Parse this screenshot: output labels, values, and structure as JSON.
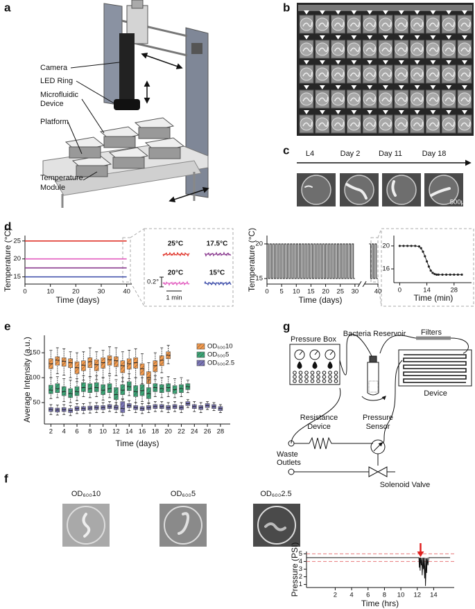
{
  "panel_labels": [
    "a",
    "b",
    "c",
    "d",
    "e",
    "f",
    "g"
  ],
  "panel_a": {
    "labels": [
      "Camera",
      "LED Ring",
      "Microfluidic",
      "Device",
      "Platform",
      "Temperature",
      "Module"
    ]
  },
  "panel_c": {
    "timeline": [
      "L4",
      "Day 2",
      "Day 11",
      "Day 18"
    ],
    "scale_bar": "500µm"
  },
  "panel_d_inset": {
    "temperatures": [
      "25°C",
      "17.5°C",
      "20°C",
      "15°C"
    ],
    "scale_y": "0.2°",
    "scale_x": "1 min"
  },
  "panel_f": {
    "labels": [
      "OD₆₀₀10",
      "OD₆₀₀5",
      "OD₆₀₀2.5"
    ]
  },
  "panel_g": {
    "labels": [
      "Pressure Box",
      "Bacteria Reservoir",
      "Filters",
      "Device",
      "Resistance",
      "Device",
      "Pressure",
      "Sensor",
      "Waste",
      "Outlets",
      "Solenoid Valve"
    ]
  },
  "chart_data": [
    {
      "type": "line",
      "x_label": "Time (days)",
      "y_label": "Temperature (°C)",
      "xlim": [
        0,
        42
      ],
      "ylim": [
        13,
        26.5
      ],
      "xticks": [
        0,
        10,
        20,
        30,
        40
      ],
      "yticks": [
        15,
        20,
        25
      ],
      "x": [
        0,
        40
      ],
      "series": [
        {
          "color": "#e0352b",
          "values": [
            25,
            25
          ]
        },
        {
          "color": "#e25bbf",
          "values": [
            20,
            20
          ]
        },
        {
          "color": "#8a3a8f",
          "values": [
            17.5,
            17.5
          ]
        },
        {
          "color": "#3a4aa8",
          "values": [
            15,
            15
          ]
        }
      ]
    },
    {
      "type": "line",
      "x_label": "Time (days)",
      "y_label": "Temperature (°C)",
      "xlim": [
        0,
        40
      ],
      "axis_break": [
        31,
        36
      ],
      "ylim": [
        14.2,
        21.2
      ],
      "xticks": [
        0,
        5,
        10,
        15,
        20,
        25,
        30,
        40
      ],
      "yticks": [
        15,
        20
      ],
      "x": [
        0,
        0.5,
        0.5,
        1,
        1,
        1.5,
        1.5,
        2,
        2,
        2.5,
        2.5,
        3,
        3,
        3.5,
        3.5,
        4,
        4,
        4.5,
        4.5,
        5,
        5,
        5.5,
        5.5,
        6,
        6,
        6.5,
        6.5,
        7,
        7,
        7.5,
        7.5,
        8,
        8,
        8.5,
        8.5,
        9,
        9,
        9.5,
        9.5,
        10,
        10,
        10.5,
        10.5,
        11,
        11,
        11.5,
        11.5,
        12,
        12,
        12.5,
        12.5,
        13,
        13,
        13.5,
        13.5,
        14,
        14,
        14.5,
        14.5,
        15,
        15,
        15.5,
        15.5,
        16,
        16,
        16.5,
        16.5,
        17,
        17,
        17.5,
        17.5,
        18,
        18,
        18.5,
        18.5,
        19,
        19,
        19.5,
        19.5,
        20,
        20,
        20.5,
        20.5,
        21,
        21,
        21.5,
        21.5,
        22,
        22,
        22.5,
        22.5,
        23,
        23,
        23.5,
        23.5,
        24,
        24,
        24.5,
        24.5,
        25,
        25,
        25.5,
        25.5,
        26,
        26,
        26.5,
        26.5,
        27,
        27,
        27.5,
        27.5,
        28,
        28,
        28.5,
        28.5,
        29,
        29,
        29.5,
        29.5,
        30,
        null,
        37,
        37.5,
        37.5,
        38,
        38,
        38.5,
        38.5,
        39,
        39,
        39.5,
        39.5,
        40
      ],
      "series": [
        {
          "color": "#222222",
          "values": [
            20,
            20,
            15,
            15,
            20,
            20,
            15,
            15,
            20,
            20,
            15,
            15,
            20,
            20,
            15,
            15,
            20,
            20,
            15,
            15,
            20,
            20,
            15,
            15,
            20,
            20,
            15,
            15,
            20,
            20,
            15,
            15,
            20,
            20,
            15,
            15,
            20,
            20,
            15,
            15,
            20,
            20,
            15,
            15,
            20,
            20,
            15,
            15,
            20,
            20,
            15,
            15,
            20,
            20,
            15,
            15,
            20,
            20,
            15,
            15,
            20,
            20,
            15,
            15,
            20,
            20,
            15,
            15,
            20,
            20,
            15,
            15,
            20,
            20,
            15,
            15,
            20,
            20,
            15,
            15,
            20,
            20,
            15,
            15,
            20,
            20,
            15,
            15,
            20,
            20,
            15,
            15,
            20,
            20,
            15,
            15,
            20,
            20,
            15,
            15,
            20,
            20,
            15,
            15,
            20,
            20,
            15,
            15,
            20,
            20,
            15,
            15,
            20,
            20,
            15,
            15,
            20,
            20,
            15,
            15,
            null,
            20,
            20,
            15,
            15,
            20,
            20,
            15,
            15,
            20,
            20,
            15,
            15
          ]
        }
      ]
    },
    {
      "type": "line",
      "x_label": "Time (min)",
      "xlim": [
        -3,
        37
      ],
      "ylim": [
        13.6,
        21.8
      ],
      "xticks": [
        0,
        14,
        28
      ],
      "yticks": [
        16,
        20
      ],
      "markers": true,
      "x": [
        0,
        2,
        4,
        6,
        8,
        10,
        11,
        12,
        13,
        14,
        15,
        16,
        17,
        18,
        19,
        20,
        22,
        24,
        26,
        28,
        30,
        32
      ],
      "series": [
        {
          "color": "#222222",
          "values": [
            20,
            20,
            20,
            20,
            20,
            19.9,
            19.6,
            19,
            18.2,
            17.3,
            16.4,
            15.7,
            15.3,
            15.1,
            15,
            15,
            15,
            15,
            15,
            15,
            15,
            15
          ]
        }
      ]
    },
    {
      "type": "box",
      "x_label": "Time (days)",
      "y_label": "Average Intensity (a.u.)",
      "xlim": [
        1,
        29.5
      ],
      "ylim": [
        7,
        185
      ],
      "xticks": [
        2,
        4,
        6,
        8,
        10,
        12,
        14,
        16,
        18,
        20,
        22,
        24,
        26,
        28
      ],
      "yticks": [
        50,
        100,
        150
      ],
      "series": [
        {
          "name": "OD₆₀₀10",
          "color": "#f39a4c",
          "x": [
            2,
            3,
            4,
            5,
            6,
            7,
            8,
            9,
            10,
            11,
            12,
            13,
            14,
            15,
            16,
            17,
            18,
            19,
            20
          ],
          "low": [
            100,
            108,
            105,
            100,
            92,
            95,
            102,
            96,
            100,
            108,
            104,
            92,
            98,
            100,
            88,
            70,
            96,
            110,
            128
          ],
          "q1": [
            118,
            125,
            123,
            120,
            108,
            114,
            120,
            114,
            119,
            125,
            122,
            110,
            117,
            119,
            105,
            88,
            112,
            124,
            138
          ],
          "median": [
            128,
            135,
            133,
            130,
            120,
            125,
            132,
            126,
            130,
            136,
            134,
            124,
            128,
            130,
            118,
            100,
            124,
            135,
            145
          ],
          "q3": [
            138,
            142,
            140,
            138,
            132,
            134,
            140,
            136,
            140,
            144,
            142,
            134,
            138,
            140,
            128,
            112,
            134,
            144,
            152
          ],
          "high": [
            155,
            160,
            158,
            152,
            150,
            152,
            160,
            152,
            155,
            162,
            160,
            152,
            155,
            158,
            148,
            130,
            150,
            160,
            165
          ]
        },
        {
          "name": "OD₆₀₀5",
          "color": "#3aa676",
          "x": [
            2,
            3,
            4,
            5,
            6,
            7,
            8,
            9,
            10,
            11,
            12,
            13,
            14,
            15,
            16,
            17,
            18,
            19,
            20,
            21,
            22,
            23
          ],
          "low": [
            58,
            60,
            52,
            50,
            54,
            62,
            60,
            62,
            55,
            60,
            45,
            56,
            64,
            50,
            52,
            48,
            62,
            60,
            62,
            60,
            62,
            70
          ],
          "q1": [
            68,
            70,
            64,
            60,
            64,
            72,
            70,
            72,
            66,
            70,
            56,
            66,
            74,
            62,
            64,
            58,
            72,
            70,
            72,
            68,
            70,
            76
          ],
          "median": [
            75,
            78,
            72,
            68,
            72,
            80,
            78,
            80,
            75,
            78,
            66,
            75,
            82,
            72,
            74,
            68,
            80,
            78,
            80,
            76,
            78,
            82
          ],
          "q3": [
            85,
            88,
            82,
            78,
            82,
            90,
            88,
            90,
            86,
            88,
            80,
            86,
            92,
            84,
            86,
            80,
            88,
            86,
            88,
            84,
            86,
            88
          ],
          "high": [
            100,
            102,
            98,
            95,
            98,
            104,
            102,
            104,
            100,
            104,
            96,
            100,
            108,
            100,
            100,
            96,
            104,
            100,
            102,
            98,
            100,
            95
          ]
        },
        {
          "name": "OD₆₀₀2.5",
          "color": "#7a75b8",
          "x": [
            2,
            3,
            4,
            5,
            6,
            7,
            8,
            9,
            10,
            11,
            12,
            13,
            14,
            15,
            16,
            17,
            18,
            19,
            20,
            21,
            22,
            23,
            24,
            25,
            26,
            27,
            28
          ],
          "low": [
            26,
            25,
            26,
            24,
            28,
            28,
            29,
            30,
            30,
            32,
            30,
            24,
            34,
            30,
            28,
            30,
            32,
            32,
            30,
            32,
            30,
            40,
            32,
            30,
            36,
            34,
            30
          ],
          "q1": [
            32,
            31,
            32,
            30,
            34,
            34,
            35,
            36,
            36,
            38,
            36,
            30,
            40,
            36,
            34,
            36,
            38,
            38,
            36,
            38,
            36,
            44,
            38,
            36,
            40,
            38,
            34
          ],
          "median": [
            36,
            35,
            36,
            34,
            38,
            38,
            39,
            40,
            40,
            42,
            40,
            38,
            44,
            40,
            38,
            40,
            42,
            42,
            40,
            42,
            40,
            48,
            42,
            40,
            44,
            42,
            38
          ],
          "q3": [
            40,
            39,
            40,
            38,
            42,
            42,
            43,
            44,
            44,
            46,
            44,
            52,
            48,
            44,
            42,
            44,
            46,
            46,
            44,
            46,
            44,
            52,
            46,
            44,
            48,
            46,
            42
          ],
          "high": [
            46,
            45,
            46,
            44,
            48,
            48,
            50,
            50,
            50,
            52,
            50,
            58,
            54,
            50,
            48,
            50,
            52,
            52,
            50,
            52,
            50,
            56,
            52,
            50,
            52,
            50,
            46
          ]
        }
      ]
    },
    {
      "type": "line",
      "x_label": "Time (hrs)",
      "y_label": "Pressure (PSI)",
      "xlim": [
        -1.5,
        16.5
      ],
      "ylim": [
        0.6,
        5.3
      ],
      "xticks": [
        2,
        4,
        6,
        8,
        10,
        12,
        14
      ],
      "yticks": [
        1,
        2,
        3,
        4,
        5
      ],
      "hlines": [
        5,
        4
      ],
      "hline_color": "#e8777a",
      "arrow_x": 12.4,
      "arrow_color": "#e0201f",
      "x": [
        -1.5,
        12.2,
        12.25,
        12.3,
        12.35,
        12.4,
        12.5,
        12.55,
        12.6,
        12.7,
        12.75,
        12.8,
        12.9,
        12.95,
        13.0,
        13.1,
        13.15,
        13.2,
        13.3,
        13.4,
        16
      ],
      "series": [
        {
          "color": "#111111",
          "values": [
            4.5,
            4.5,
            3.2,
            4.5,
            2.8,
            4.5,
            3.5,
            4.5,
            2.2,
            4.5,
            3.0,
            4.5,
            1.8,
            4.5,
            0.8,
            4.4,
            2.5,
            4.5,
            3.5,
            4.5,
            4.5
          ]
        }
      ]
    }
  ]
}
